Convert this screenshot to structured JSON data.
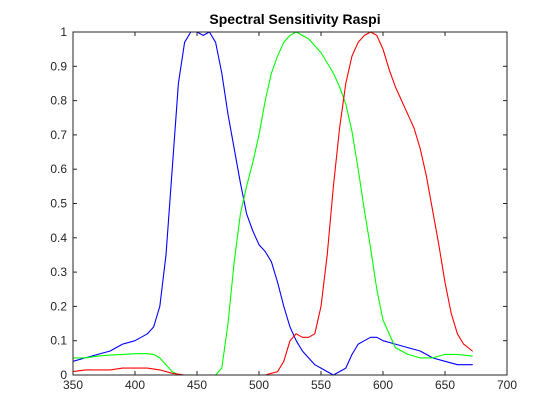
{
  "chart_data": {
    "type": "line",
    "title": "Spectral Sensitivity Raspi",
    "xlabel": "",
    "ylabel": "",
    "xlim": [
      350,
      700
    ],
    "ylim": [
      0,
      1
    ],
    "xticks": [
      350,
      400,
      450,
      500,
      550,
      600,
      650,
      700
    ],
    "yticks": [
      0,
      0.1,
      0.2,
      0.3,
      0.4,
      0.5,
      0.6,
      0.7,
      0.8,
      0.9,
      1
    ],
    "ytick_labels": [
      "0",
      "0.1",
      "0.2",
      "0.3",
      "0.4",
      "0.5",
      "0.6",
      "0.7",
      "0.8",
      "0.9",
      "1"
    ],
    "grid": false,
    "box": true,
    "series": [
      {
        "color": "#0000ff",
        "x": [
          350,
          360,
          370,
          380,
          390,
          400,
          410,
          415,
          420,
          425,
          430,
          435,
          440,
          445,
          450,
          455,
          460,
          465,
          470,
          475,
          480,
          485,
          490,
          495,
          500,
          505,
          510,
          515,
          520,
          525,
          530,
          535,
          540,
          545,
          550,
          555,
          560,
          565,
          570,
          575,
          580,
          585,
          590,
          595,
          600,
          610,
          620,
          630,
          640,
          650,
          660,
          672
        ],
        "y": [
          0.04,
          0.05,
          0.06,
          0.07,
          0.09,
          0.1,
          0.12,
          0.14,
          0.2,
          0.35,
          0.6,
          0.85,
          0.97,
          1.0,
          1.0,
          0.99,
          1.0,
          0.97,
          0.88,
          0.76,
          0.66,
          0.56,
          0.47,
          0.42,
          0.38,
          0.36,
          0.33,
          0.27,
          0.2,
          0.14,
          0.1,
          0.07,
          0.05,
          0.03,
          0.02,
          0.01,
          0.0,
          0.01,
          0.02,
          0.06,
          0.09,
          0.1,
          0.11,
          0.11,
          0.1,
          0.09,
          0.08,
          0.07,
          0.05,
          0.04,
          0.03,
          0.03
        ]
      },
      {
        "color": "#00ff00",
        "x": [
          350,
          360,
          370,
          380,
          390,
          400,
          410,
          415,
          420,
          425,
          430,
          435,
          440,
          445,
          450,
          455,
          460,
          465,
          470,
          475,
          480,
          485,
          490,
          495,
          500,
          505,
          510,
          515,
          520,
          525,
          530,
          535,
          540,
          545,
          550,
          555,
          560,
          565,
          570,
          575,
          580,
          585,
          590,
          595,
          600,
          610,
          620,
          630,
          640,
          650,
          660,
          672
        ],
        "y": [
          0.05,
          0.05,
          0.055,
          0.058,
          0.06,
          0.062,
          0.062,
          0.06,
          0.05,
          0.03,
          0.01,
          0.0,
          0.0,
          0.0,
          0.0,
          0.0,
          0.0,
          0.0,
          0.02,
          0.15,
          0.33,
          0.47,
          0.55,
          0.62,
          0.7,
          0.8,
          0.88,
          0.93,
          0.97,
          0.99,
          1.0,
          0.99,
          0.98,
          0.96,
          0.94,
          0.91,
          0.88,
          0.84,
          0.79,
          0.71,
          0.6,
          0.48,
          0.37,
          0.25,
          0.16,
          0.08,
          0.06,
          0.05,
          0.05,
          0.06,
          0.06,
          0.055
        ]
      },
      {
        "color": "#ff0000",
        "x": [
          350,
          360,
          370,
          380,
          390,
          400,
          410,
          420,
          430,
          440,
          450,
          460,
          470,
          480,
          490,
          500,
          505,
          510,
          515,
          520,
          525,
          530,
          535,
          540,
          545,
          550,
          555,
          560,
          565,
          570,
          575,
          580,
          585,
          590,
          595,
          600,
          605,
          610,
          615,
          620,
          625,
          630,
          635,
          640,
          645,
          650,
          655,
          660,
          665,
          672
        ],
        "y": [
          0.01,
          0.015,
          0.015,
          0.015,
          0.02,
          0.02,
          0.02,
          0.015,
          0.005,
          0.0,
          0.0,
          0.0,
          0.0,
          0.0,
          0.0,
          0.0,
          0.0,
          0.005,
          0.01,
          0.04,
          0.1,
          0.12,
          0.11,
          0.11,
          0.12,
          0.2,
          0.35,
          0.55,
          0.72,
          0.85,
          0.93,
          0.97,
          0.99,
          1.0,
          0.99,
          0.95,
          0.89,
          0.84,
          0.8,
          0.76,
          0.72,
          0.66,
          0.58,
          0.48,
          0.38,
          0.27,
          0.18,
          0.12,
          0.09,
          0.07
        ]
      }
    ]
  }
}
